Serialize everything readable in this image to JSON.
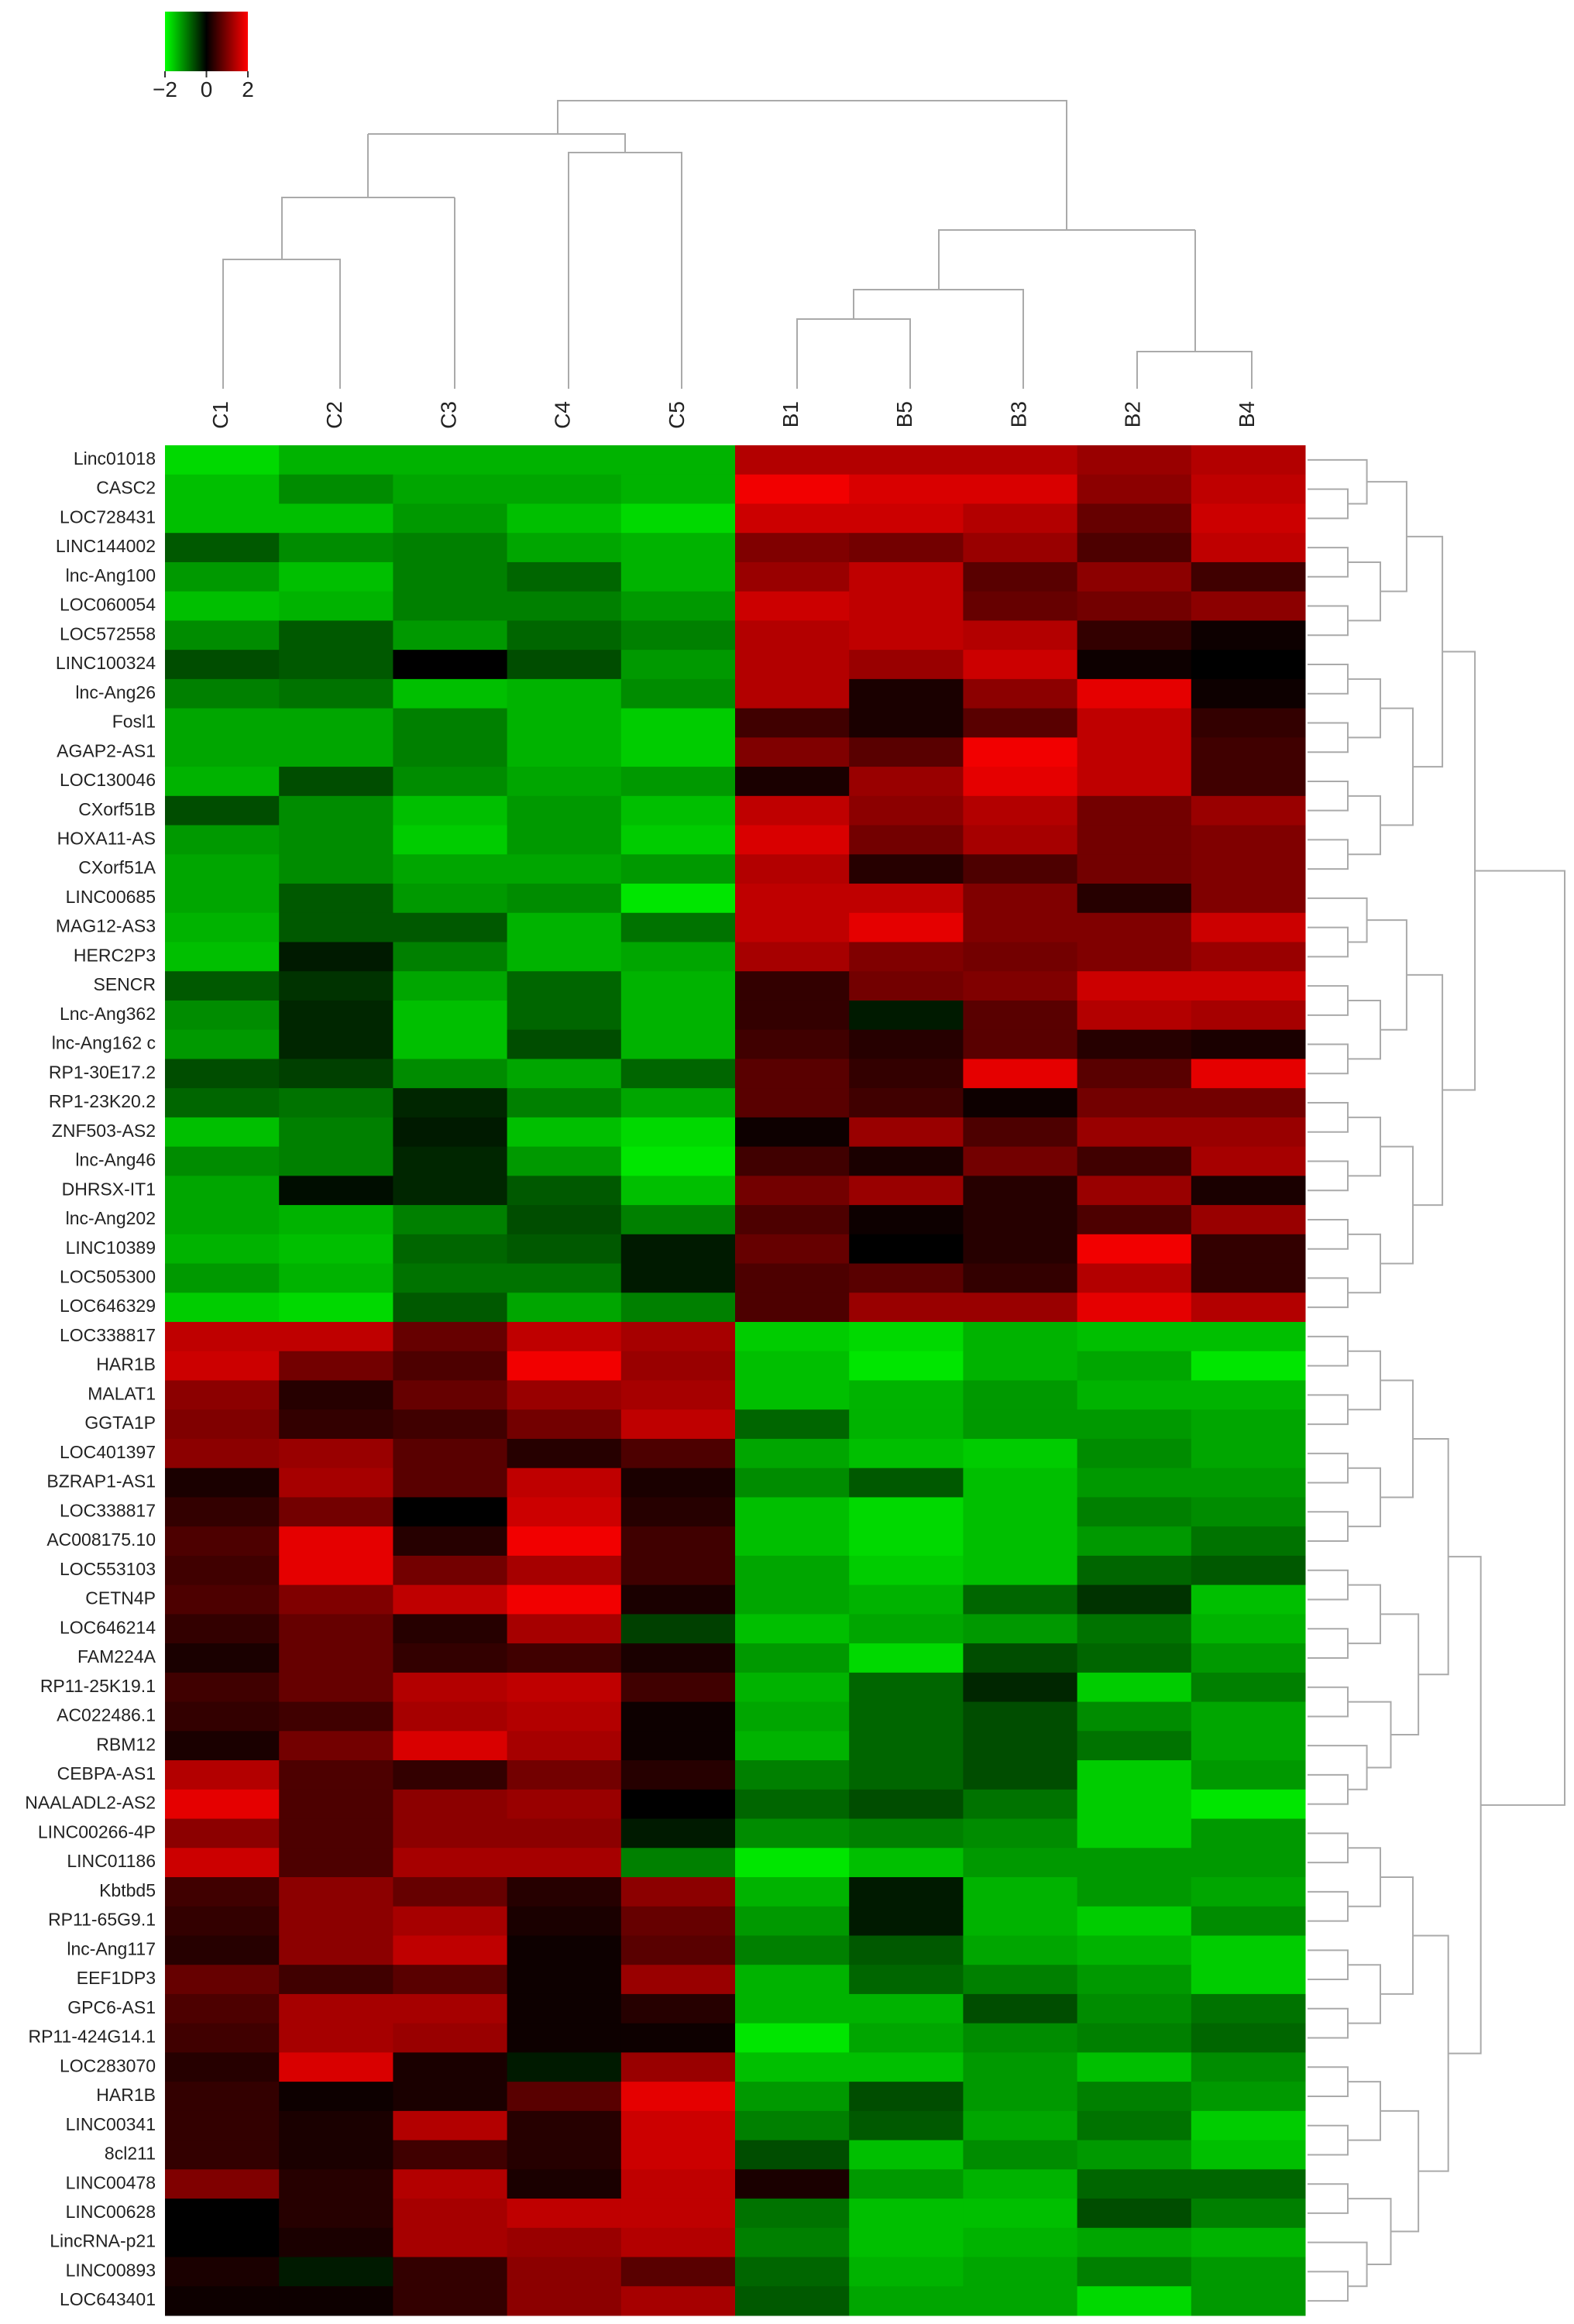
{
  "chart_data": {
    "type": "heatmap",
    "columns": [
      "C1",
      "C2",
      "C3",
      "C4",
      "C5",
      "B1",
      "B5",
      "B3",
      "B2",
      "B4"
    ],
    "rows": [
      "Linc01018",
      "CASC2",
      "LOC728431",
      "LINC144002",
      "lnc-Ang100",
      "LOC060054",
      "LOC572558",
      "LINC100324",
      "lnc-Ang26",
      "Fosl1",
      "AGAP2-AS1",
      "LOC130046",
      "CXorf51B",
      "HOXA11-AS",
      "CXorf51A",
      "LINC00685",
      "MAG12-AS3",
      "HERC2P3",
      "SENCR",
      "Lnc-Ang362",
      "lnc-Ang162 c",
      "RP1-30E17.2",
      "RP1-23K20.2",
      "ZNF503-AS2",
      "lnc-Ang46",
      "DHRSX-IT1",
      "lnc-Ang202",
      "LINC10389",
      "LOC505300",
      "LOC646329",
      "LOC338817",
      "HAR1B",
      "MALAT1",
      "GGTA1P",
      "LOC401397",
      "BZRAP1-AS1",
      "LOC338817",
      "AC008175.10",
      "LOC553103",
      "CETN4P",
      "LOC646214",
      "FAM224A",
      "RP11-25K19.1",
      "AC022486.1",
      "RBM12",
      "CEBPA-AS1",
      "NAALADL2-AS2",
      "LINC00266-4P",
      "LINC01186",
      "Kbtbd5",
      "RP11-65G9.1",
      "lnc-Ang117",
      "EEF1DP3",
      "GPC6-AS1",
      "RP11-424G14.1",
      "LOC283070",
      "HAR1B",
      "LINC00341",
      "8cl211",
      "LINC00478",
      "LINC00628",
      "LincRNA-p21",
      "LINC00893",
      "LOC643401"
    ],
    "values": [
      [
        -1.7,
        -1.4,
        -1.4,
        -1.4,
        -1.4,
        1.4,
        1.4,
        1.4,
        1.2,
        1.4
      ],
      [
        -1.5,
        -1.1,
        -1.3,
        -1.3,
        -1.4,
        1.9,
        1.7,
        1.7,
        1.1,
        1.5
      ],
      [
        -1.5,
        -1.5,
        -1.2,
        -1.5,
        -1.7,
        1.6,
        1.6,
        1.4,
        0.8,
        1.6
      ],
      [
        -0.7,
        -1.1,
        -1.0,
        -1.3,
        -1.4,
        1.0,
        0.9,
        1.2,
        0.6,
        1.5
      ],
      [
        -1.2,
        -1.5,
        -1.0,
        -0.8,
        -1.4,
        1.2,
        1.5,
        0.7,
        1.1,
        0.5
      ],
      [
        -1.5,
        -1.4,
        -1.0,
        -1.0,
        -1.2,
        1.6,
        1.5,
        0.8,
        0.9,
        1.1
      ],
      [
        -1.1,
        -0.7,
        -1.2,
        -0.8,
        -1.0,
        1.4,
        1.5,
        1.4,
        0.4,
        0.1
      ],
      [
        -0.6,
        -0.7,
        0.0,
        -0.6,
        -1.2,
        1.4,
        1.2,
        1.6,
        0.1,
        0.0
      ],
      [
        -1.0,
        -0.9,
        -1.5,
        -1.4,
        -1.1,
        1.4,
        0.2,
        1.1,
        1.8,
        0.1
      ],
      [
        -1.3,
        -1.3,
        -1.0,
        -1.4,
        -1.6,
        0.5,
        0.2,
        0.7,
        1.5,
        0.4
      ],
      [
        -1.3,
        -1.3,
        -1.0,
        -1.4,
        -1.6,
        1.0,
        0.7,
        1.9,
        1.5,
        0.5
      ],
      [
        -1.4,
        -0.6,
        -1.1,
        -1.3,
        -1.2,
        0.2,
        1.2,
        1.8,
        1.5,
        0.5
      ],
      [
        -0.6,
        -1.1,
        -1.5,
        -1.2,
        -1.5,
        1.5,
        1.1,
        1.4,
        0.9,
        1.2
      ],
      [
        -1.2,
        -1.1,
        -1.6,
        -1.2,
        -1.6,
        1.7,
        0.9,
        1.3,
        0.9,
        1.0
      ],
      [
        -1.3,
        -1.1,
        -1.3,
        -1.3,
        -1.2,
        1.4,
        0.3,
        0.6,
        0.9,
        1.0
      ],
      [
        -1.3,
        -0.7,
        -1.2,
        -1.1,
        -1.8,
        1.5,
        1.5,
        1.0,
        0.3,
        1.0
      ],
      [
        -1.4,
        -0.7,
        -0.7,
        -1.4,
        -0.9,
        1.5,
        1.8,
        1.0,
        1.0,
        1.6
      ],
      [
        -1.5,
        -0.2,
        -1.0,
        -1.4,
        -1.3,
        1.3,
        1.0,
        0.9,
        1.0,
        1.2
      ],
      [
        -0.7,
        -0.4,
        -1.3,
        -0.8,
        -1.4,
        0.4,
        0.9,
        1.0,
        1.6,
        1.6
      ],
      [
        -1.1,
        -0.3,
        -1.5,
        -0.8,
        -1.4,
        0.4,
        -0.2,
        0.7,
        1.4,
        1.3
      ],
      [
        -1.2,
        -0.3,
        -1.5,
        -0.6,
        -1.4,
        0.5,
        0.3,
        0.7,
        0.3,
        0.2
      ],
      [
        -0.6,
        -0.5,
        -1.1,
        -1.3,
        -0.8,
        0.7,
        0.4,
        1.8,
        0.7,
        1.8
      ],
      [
        -0.8,
        -0.9,
        -0.3,
        -1.0,
        -1.3,
        0.7,
        0.5,
        0.1,
        0.9,
        0.9
      ],
      [
        -1.5,
        -1.0,
        -0.2,
        -1.5,
        -1.7,
        0.1,
        1.2,
        0.6,
        1.2,
        1.2
      ],
      [
        -1.1,
        -1.0,
        -0.3,
        -1.2,
        -1.8,
        0.5,
        0.2,
        0.9,
        0.5,
        1.3
      ],
      [
        -1.3,
        -0.1,
        -0.3,
        -0.7,
        -1.5,
        0.9,
        1.2,
        0.3,
        1.2,
        0.2
      ],
      [
        -1.3,
        -1.4,
        -1.0,
        -0.6,
        -1.0,
        0.6,
        0.1,
        0.3,
        0.6,
        1.2
      ],
      [
        -1.4,
        -1.5,
        -0.8,
        -0.7,
        -0.2,
        0.8,
        0.0,
        0.3,
        1.9,
        0.4
      ],
      [
        -1.2,
        -1.4,
        -0.9,
        -0.9,
        -0.2,
        0.6,
        0.7,
        0.4,
        1.4,
        0.4
      ],
      [
        -1.6,
        -1.7,
        -0.7,
        -1.3,
        -1.0,
        0.6,
        1.2,
        1.2,
        1.8,
        1.4
      ],
      [
        1.5,
        1.5,
        0.8,
        1.5,
        1.3,
        -1.6,
        -1.7,
        -1.4,
        -1.5,
        -1.5
      ],
      [
        1.6,
        0.9,
        0.6,
        1.9,
        1.2,
        -1.5,
        -1.8,
        -1.4,
        -1.3,
        -1.8
      ],
      [
        1.1,
        0.3,
        0.8,
        1.2,
        1.3,
        -1.5,
        -1.4,
        -1.2,
        -1.4,
        -1.4
      ],
      [
        1.0,
        0.4,
        0.5,
        0.9,
        1.5,
        -0.8,
        -1.4,
        -1.2,
        -1.2,
        -1.3
      ],
      [
        1.1,
        1.2,
        0.7,
        0.3,
        0.6,
        -1.3,
        -1.5,
        -1.6,
        -1.1,
        -1.3
      ],
      [
        0.2,
        1.3,
        0.7,
        1.5,
        0.2,
        -1.1,
        -0.7,
        -1.5,
        -1.2,
        -1.2
      ],
      [
        0.4,
        0.9,
        0.0,
        1.6,
        0.3,
        -1.5,
        -1.7,
        -1.5,
        -1.0,
        -1.1
      ],
      [
        0.6,
        1.8,
        0.3,
        1.9,
        0.5,
        -1.5,
        -1.7,
        -1.5,
        -1.2,
        -0.9
      ],
      [
        0.5,
        1.8,
        0.9,
        1.3,
        0.5,
        -1.3,
        -1.6,
        -1.5,
        -0.8,
        -0.7
      ],
      [
        0.6,
        1.0,
        1.5,
        1.9,
        0.2,
        -1.3,
        -1.4,
        -0.8,
        -0.4,
        -1.5
      ],
      [
        0.4,
        0.8,
        0.3,
        1.3,
        -0.5,
        -1.5,
        -1.3,
        -1.2,
        -0.9,
        -1.4
      ],
      [
        0.2,
        0.8,
        0.4,
        0.5,
        0.2,
        -1.2,
        -1.7,
        -0.6,
        -0.8,
        -1.2
      ],
      [
        0.5,
        0.8,
        1.4,
        1.5,
        0.5,
        -1.4,
        -0.8,
        -0.3,
        -1.6,
        -1.0
      ],
      [
        0.4,
        0.5,
        1.3,
        1.4,
        0.1,
        -1.3,
        -0.8,
        -0.6,
        -1.1,
        -1.3
      ],
      [
        0.2,
        0.9,
        1.7,
        1.3,
        0.1,
        -1.4,
        -0.8,
        -0.6,
        -0.9,
        -1.3
      ],
      [
        1.4,
        0.6,
        0.4,
        0.9,
        0.3,
        -1.0,
        -0.8,
        -0.6,
        -1.6,
        -1.2
      ],
      [
        1.8,
        0.6,
        1.1,
        1.2,
        0.0,
        -0.8,
        -0.6,
        -0.9,
        -1.6,
        -1.8
      ],
      [
        1.1,
        0.6,
        1.1,
        1.1,
        -0.2,
        -1.1,
        -1.0,
        -1.1,
        -1.6,
        -1.2
      ],
      [
        1.6,
        0.6,
        1.3,
        1.3,
        -1.0,
        -1.8,
        -1.5,
        -1.2,
        -1.2,
        -1.2
      ],
      [
        0.5,
        1.1,
        0.8,
        0.3,
        1.1,
        -1.4,
        -0.2,
        -1.4,
        -1.2,
        -1.3
      ],
      [
        0.4,
        1.1,
        1.3,
        0.2,
        0.8,
        -1.2,
        -0.2,
        -1.4,
        -1.6,
        -1.1
      ],
      [
        0.3,
        1.1,
        1.5,
        0.1,
        0.7,
        -1.0,
        -0.7,
        -1.3,
        -1.4,
        -1.6
      ],
      [
        0.8,
        0.5,
        0.7,
        0.1,
        1.2,
        -1.4,
        -0.8,
        -1.0,
        -1.2,
        -1.6
      ],
      [
        0.6,
        1.3,
        1.3,
        0.1,
        0.3,
        -1.4,
        -1.4,
        -0.6,
        -1.1,
        -0.9
      ],
      [
        0.5,
        1.3,
        1.2,
        0.1,
        0.1,
        -1.8,
        -1.3,
        -1.1,
        -1.0,
        -0.8
      ],
      [
        0.3,
        1.7,
        0.2,
        -0.2,
        1.2,
        -1.5,
        -1.5,
        -1.2,
        -1.5,
        -1.1
      ],
      [
        0.4,
        0.1,
        0.2,
        0.7,
        1.8,
        -1.2,
        -0.6,
        -1.2,
        -1.0,
        -1.2
      ],
      [
        0.4,
        0.2,
        1.4,
        0.3,
        1.6,
        -1.0,
        -0.7,
        -1.3,
        -0.9,
        -1.6
      ],
      [
        0.4,
        0.2,
        0.5,
        0.3,
        1.6,
        -0.6,
        -1.5,
        -1.1,
        -1.2,
        -1.5
      ],
      [
        1.0,
        0.3,
        1.4,
        0.2,
        1.5,
        0.2,
        -1.2,
        -1.4,
        -0.8,
        -0.8
      ],
      [
        0.0,
        0.3,
        1.3,
        1.5,
        1.5,
        -0.9,
        -1.5,
        -1.5,
        -0.6,
        -1.0
      ],
      [
        0.0,
        0.2,
        1.3,
        1.2,
        1.4,
        -1.0,
        -1.5,
        -1.4,
        -1.3,
        -1.4
      ],
      [
        0.2,
        -0.2,
        0.4,
        1.1,
        0.7,
        -0.8,
        -1.4,
        -1.3,
        -1.0,
        -1.2
      ],
      [
        0.1,
        0.1,
        0.4,
        1.1,
        1.3,
        -0.7,
        -1.3,
        -1.3,
        -1.7,
        -1.2
      ]
    ],
    "zlim": [
      -2,
      2
    ],
    "zticks": [
      {
        "value": -2,
        "label": "−2"
      },
      0,
      2
    ],
    "colorscale": [
      "#00ff00",
      "#000000",
      "#ff0000"
    ]
  }
}
